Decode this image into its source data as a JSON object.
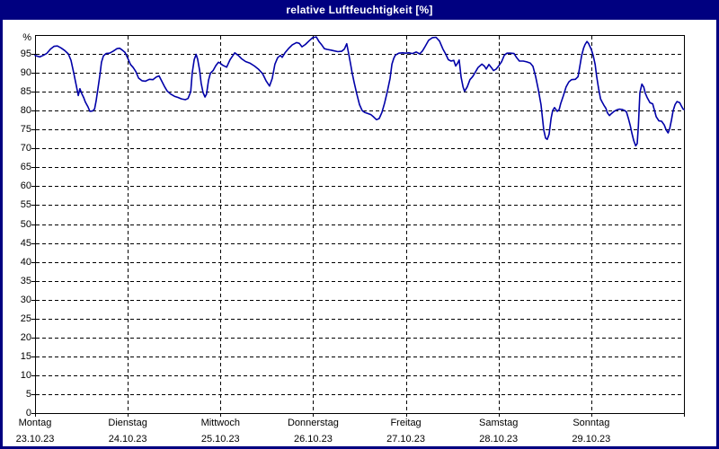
{
  "window": {
    "title": "relative Luftfeuchtigkeit [%]"
  },
  "colors": {
    "titlebar_bg": "#000080",
    "titlebar_text": "#FFFFFF",
    "frame": "#000080",
    "plot_border": "#000000",
    "grid": "#000000",
    "background": "#FFFFFF",
    "line": "#0000A8"
  },
  "chart_data": {
    "type": "line",
    "title": "relative Luftfeuchtigkeit [%]",
    "series_name": "relative Luftfeuchtigkeit",
    "unit_label": "%",
    "ylim": [
      0,
      100
    ],
    "y_tick_step": 5,
    "y_ticks": [
      0,
      5,
      10,
      15,
      20,
      25,
      30,
      35,
      40,
      45,
      50,
      55,
      60,
      65,
      70,
      75,
      80,
      85,
      90,
      95
    ],
    "grid": "dashed",
    "legend": "none",
    "line_color": "#0000A8",
    "x_axis": {
      "hours_total": 168,
      "x_tick_hours": 24,
      "days": [
        {
          "name": "Montag",
          "date": "23.10.23"
        },
        {
          "name": "Dienstag",
          "date": "24.10.23"
        },
        {
          "name": "Mittwoch",
          "date": "25.10.23"
        },
        {
          "name": "Donnerstag",
          "date": "26.10.23"
        },
        {
          "name": "Freitag",
          "date": "27.10.23"
        },
        {
          "name": "Samstag",
          "date": "28.10.23"
        },
        {
          "name": "Sonntag",
          "date": "29.10.23"
        }
      ]
    },
    "points": [
      [
        0,
        94.6
      ],
      [
        1.2,
        94.2
      ],
      [
        2.1,
        94.6
      ],
      [
        3,
        95.1
      ],
      [
        4,
        96.3
      ],
      [
        4.9,
        97
      ],
      [
        5.8,
        97.1
      ],
      [
        6.7,
        96.6
      ],
      [
        7.7,
        95.9
      ],
      [
        8.6,
        95
      ],
      [
        9.3,
        93.3
      ],
      [
        10,
        90
      ],
      [
        10.7,
        86.5
      ],
      [
        11.2,
        84
      ],
      [
        11.6,
        85.8
      ],
      [
        12.1,
        84.5
      ],
      [
        12.6,
        83.4
      ],
      [
        13,
        82.3
      ],
      [
        13.7,
        81
      ],
      [
        14.2,
        79.8
      ],
      [
        14.9,
        79.9
      ],
      [
        15.4,
        80.4
      ],
      [
        15.8,
        82.5
      ],
      [
        16.3,
        86
      ],
      [
        16.8,
        89.5
      ],
      [
        17.2,
        92.8
      ],
      [
        17.7,
        94.5
      ],
      [
        18.4,
        95.1
      ],
      [
        19.3,
        95.2
      ],
      [
        20.2,
        95.7
      ],
      [
        21.2,
        96.4
      ],
      [
        21.9,
        96.5
      ],
      [
        22.6,
        96
      ],
      [
        23.3,
        95.4
      ],
      [
        24,
        93.9
      ],
      [
        24.7,
        92.2
      ],
      [
        25.4,
        91.4
      ],
      [
        26.1,
        90.3
      ],
      [
        26.8,
        88.6
      ],
      [
        27.7,
        87.9
      ],
      [
        28.6,
        87.8
      ],
      [
        29.6,
        88.3
      ],
      [
        30.5,
        88.2
      ],
      [
        31.4,
        88.9
      ],
      [
        32.1,
        89.2
      ],
      [
        32.8,
        87.8
      ],
      [
        33.5,
        86.4
      ],
      [
        34.2,
        85.2
      ],
      [
        35.1,
        84.4
      ],
      [
        36.1,
        83.8
      ],
      [
        37,
        83.5
      ],
      [
        37.9,
        83.1
      ],
      [
        38.9,
        82.9
      ],
      [
        39.6,
        83.2
      ],
      [
        40.3,
        85
      ],
      [
        40.7,
        90
      ],
      [
        41.2,
        93.5
      ],
      [
        41.7,
        94.9
      ],
      [
        42.1,
        93.6
      ],
      [
        42.6,
        90.7
      ],
      [
        43,
        87.3
      ],
      [
        43.5,
        84.8
      ],
      [
        44,
        83.6
      ],
      [
        44.4,
        84.4
      ],
      [
        44.9,
        88
      ],
      [
        45.4,
        89.9
      ],
      [
        46.1,
        90.6
      ],
      [
        46.8,
        91.9
      ],
      [
        47.5,
        92.8
      ],
      [
        47.9,
        92.6
      ],
      [
        48.6,
        92
      ],
      [
        49.6,
        91.5
      ],
      [
        50.5,
        93.5
      ],
      [
        51.7,
        95.3
      ],
      [
        52.6,
        94.6
      ],
      [
        53.5,
        93.7
      ],
      [
        54.5,
        93
      ],
      [
        55.6,
        92.6
      ],
      [
        56.8,
        91.8
      ],
      [
        57.9,
        90.9
      ],
      [
        58.9,
        89.8
      ],
      [
        59.8,
        87.9
      ],
      [
        60.7,
        86.5
      ],
      [
        61.4,
        88.5
      ],
      [
        62.1,
        92.3
      ],
      [
        62.8,
        94
      ],
      [
        63.5,
        94.6
      ],
      [
        64,
        94.1
      ],
      [
        64.7,
        95.3
      ],
      [
        65.6,
        96.4
      ],
      [
        66.6,
        97.4
      ],
      [
        67.7,
        98
      ],
      [
        68.4,
        97.8
      ],
      [
        69.1,
        96.9
      ],
      [
        70,
        97.5
      ],
      [
        71,
        98.5
      ],
      [
        71.9,
        99.3
      ],
      [
        72.8,
        99.5
      ],
      [
        73.5,
        98.3
      ],
      [
        74.2,
        97.4
      ],
      [
        74.9,
        96.4
      ],
      [
        75.6,
        96.2
      ],
      [
        76.6,
        96
      ],
      [
        77.5,
        95.8
      ],
      [
        78.4,
        95.6
      ],
      [
        79.4,
        95.7
      ],
      [
        80.1,
        96.3
      ],
      [
        80.7,
        97.7
      ],
      [
        81.2,
        95
      ],
      [
        81.7,
        92.3
      ],
      [
        82.1,
        90
      ],
      [
        82.6,
        87.5
      ],
      [
        83.3,
        84.4
      ],
      [
        84,
        81.6
      ],
      [
        84.7,
        80
      ],
      [
        85.4,
        79.5
      ],
      [
        86.3,
        79.2
      ],
      [
        87,
        78.9
      ],
      [
        87.7,
        78.3
      ],
      [
        88.4,
        77.6
      ],
      [
        89.1,
        77.9
      ],
      [
        89.8,
        79.5
      ],
      [
        90.5,
        82
      ],
      [
        91.2,
        85
      ],
      [
        91.9,
        88.5
      ],
      [
        92.4,
        92.3
      ],
      [
        92.9,
        93.9
      ],
      [
        93.3,
        94.7
      ],
      [
        94.2,
        95.2
      ],
      [
        95.2,
        95.3
      ],
      [
        95.9,
        95.2
      ],
      [
        96.8,
        95.3
      ],
      [
        97.7,
        95.1
      ],
      [
        98.7,
        95.5
      ],
      [
        99.6,
        95
      ],
      [
        100.3,
        95.8
      ],
      [
        101,
        97
      ],
      [
        101.9,
        98.6
      ],
      [
        102.9,
        99.3
      ],
      [
        103.8,
        99.4
      ],
      [
        104.7,
        98.4
      ],
      [
        105.6,
        96.3
      ],
      [
        106.3,
        95
      ],
      [
        107,
        93.5
      ],
      [
        107.7,
        93.1
      ],
      [
        108.4,
        93.3
      ],
      [
        108.9,
        91.8
      ],
      [
        109.4,
        92.6
      ],
      [
        109.8,
        93.4
      ],
      [
        110.3,
        88.9
      ],
      [
        110.8,
        86.3
      ],
      [
        111.2,
        85.1
      ],
      [
        111.9,
        86.3
      ],
      [
        112.6,
        88.2
      ],
      [
        113.3,
        89
      ],
      [
        114,
        90.2
      ],
      [
        114.7,
        91.4
      ],
      [
        115.7,
        92.3
      ],
      [
        116.4,
        91.7
      ],
      [
        116.8,
        91
      ],
      [
        117.5,
        92.2
      ],
      [
        118.2,
        91.3
      ],
      [
        118.7,
        90.6
      ],
      [
        119.4,
        91
      ],
      [
        120.1,
        91.9
      ],
      [
        120.8,
        93
      ],
      [
        121.5,
        94.7
      ],
      [
        122.2,
        95.2
      ],
      [
        123.1,
        95.2
      ],
      [
        124,
        95.1
      ],
      [
        124.7,
        94
      ],
      [
        125.4,
        93.1
      ],
      [
        126.4,
        93.1
      ],
      [
        127.3,
        92.9
      ],
      [
        128.2,
        92.6
      ],
      [
        128.9,
        91.7
      ],
      [
        129.6,
        89
      ],
      [
        130.3,
        85.5
      ],
      [
        131,
        81.5
      ],
      [
        131.7,
        74.9
      ],
      [
        132.2,
        72.7
      ],
      [
        132.6,
        72.4
      ],
      [
        133.1,
        73.8
      ],
      [
        133.6,
        78
      ],
      [
        134,
        80
      ],
      [
        134.5,
        80.8
      ],
      [
        135.2,
        79.8
      ],
      [
        135.7,
        80.3
      ],
      [
        136.1,
        81.9
      ],
      [
        136.8,
        84
      ],
      [
        137.5,
        86.3
      ],
      [
        138.2,
        87.6
      ],
      [
        138.9,
        88.2
      ],
      [
        139.9,
        88.3
      ],
      [
        140.6,
        89
      ],
      [
        141,
        91.5
      ],
      [
        141.5,
        94.5
      ],
      [
        142,
        96.5
      ],
      [
        142.4,
        97.5
      ],
      [
        142.9,
        98.3
      ],
      [
        143.3,
        97.8
      ],
      [
        144,
        96.2
      ],
      [
        144.5,
        94.6
      ],
      [
        145,
        92.2
      ],
      [
        145.4,
        89
      ],
      [
        145.9,
        85.9
      ],
      [
        146.4,
        83.1
      ],
      [
        146.8,
        82.3
      ],
      [
        147.3,
        81.4
      ],
      [
        147.8,
        80.6
      ],
      [
        148.2,
        79.4
      ],
      [
        148.7,
        78.7
      ],
      [
        149.2,
        79.2
      ],
      [
        149.9,
        79.8
      ],
      [
        150.6,
        80.2
      ],
      [
        151.3,
        80.4
      ],
      [
        152,
        80.3
      ],
      [
        152.7,
        80
      ],
      [
        153.1,
        79.7
      ],
      [
        153.6,
        78
      ],
      [
        154.1,
        76
      ],
      [
        154.5,
        74.1
      ],
      [
        155,
        72.1
      ],
      [
        155.5,
        70.7
      ],
      [
        155.9,
        71.3
      ],
      [
        156.2,
        76
      ],
      [
        156.6,
        84.8
      ],
      [
        157.1,
        87
      ],
      [
        157.6,
        86.2
      ],
      [
        158,
        84.6
      ],
      [
        158.5,
        83.4
      ],
      [
        159.2,
        82.1
      ],
      [
        159.9,
        81.8
      ],
      [
        160.4,
        80
      ],
      [
        160.8,
        78.4
      ],
      [
        161.5,
        77.3
      ],
      [
        162.2,
        77.2
      ],
      [
        162.9,
        76.2
      ],
      [
        163.4,
        74.9
      ],
      [
        163.9,
        74.1
      ],
      [
        164.3,
        75.2
      ],
      [
        164.8,
        77.6
      ],
      [
        165.2,
        80
      ],
      [
        165.7,
        81.6
      ],
      [
        166.2,
        82.4
      ],
      [
        166.9,
        82.1
      ],
      [
        167.3,
        81.3
      ],
      [
        167.8,
        80.4
      ],
      [
        168,
        80.3
      ]
    ]
  }
}
